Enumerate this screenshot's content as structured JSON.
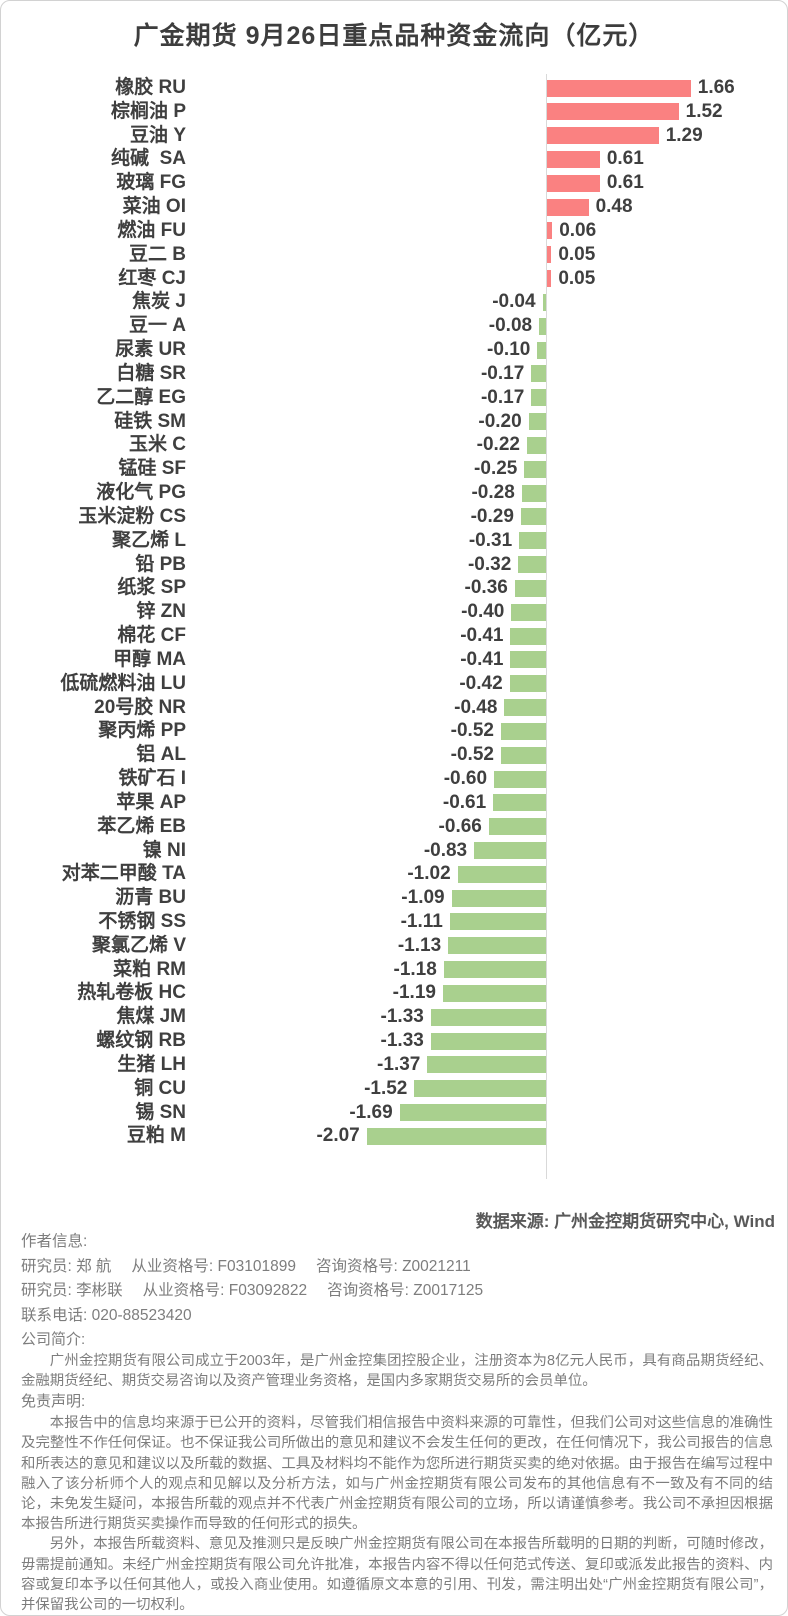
{
  "chart_data": {
    "type": "bar",
    "orientation": "horizontal",
    "title": "广金期货 9月26日重点品种资金流向（亿元）",
    "unit": "亿元",
    "value_decimals": 2,
    "grid": false,
    "legend": "none",
    "positive_color": "#fa8181",
    "negative_color": "#a9d08e",
    "axis_color": "#d9d9d9",
    "categories": [
      "橡胶 RU",
      "棕榈油 P",
      "豆油 Y",
      "纯碱  SA",
      "玻璃 FG",
      "菜油 OI",
      "燃油 FU",
      "豆二 B",
      "红枣 CJ",
      "焦炭 J",
      "豆一 A",
      "尿素 UR",
      "白糖 SR",
      "乙二醇 EG",
      "硅铁 SM",
      "玉米 C",
      "锰硅 SF",
      "液化气 PG",
      "玉米淀粉 CS",
      "聚乙烯 L",
      "铅 PB",
      "纸浆 SP",
      "锌 ZN",
      "棉花 CF",
      "甲醇 MA",
      "低硫燃料油 LU",
      "20号胶 NR",
      "聚丙烯 PP",
      "铝 AL",
      "铁矿石 I",
      "苹果 AP",
      "苯乙烯 EB",
      "镍 NI",
      "对苯二甲酸 TA",
      "沥青 BU",
      "不锈钢 SS",
      "聚氯乙烯 V",
      "菜粕 RM",
      "热轧卷板 HC",
      "焦煤 JM",
      "螺纹钢 RB",
      "生猪 LH",
      "铜 CU",
      "锡 SN",
      "豆粕 M"
    ],
    "values": [
      1.66,
      1.52,
      1.29,
      0.61,
      0.61,
      0.48,
      0.06,
      0.05,
      0.05,
      -0.04,
      -0.08,
      -0.1,
      -0.17,
      -0.17,
      -0.2,
      -0.22,
      -0.25,
      -0.28,
      -0.29,
      -0.31,
      -0.32,
      -0.36,
      -0.4,
      -0.41,
      -0.41,
      -0.42,
      -0.48,
      -0.52,
      -0.52,
      -0.6,
      -0.61,
      -0.66,
      -0.83,
      -1.02,
      -1.09,
      -1.11,
      -1.13,
      -1.18,
      -1.19,
      -1.33,
      -1.33,
      -1.37,
      -1.52,
      -1.69,
      -2.07
    ]
  },
  "source_note": "数据来源: 广州金控期货研究中心, Wind",
  "footer": {
    "author_header": "作者信息:",
    "researchers": [
      {
        "role": "研究员: 郑 航",
        "practice_no": "从业资格号: F03101899",
        "advisory_no": "咨询资格号: Z0021211"
      },
      {
        "role": "研究员: 李彬联",
        "practice_no": "从业资格号: F03092822",
        "advisory_no": "咨询资格号: Z0017125"
      }
    ],
    "contact": "联系电话: 020-88523420",
    "company_header": "公司简介:",
    "company_intro": "广州金控期货有限公司成立于2003年，是广州金控集团控股企业，注册资本为8亿元人民币，具有商品期货经纪、金融期货经纪、期货交易咨询以及资产管理业务资格，是国内多家期货交易所的会员单位。",
    "disclaimer_header": "免责声明:",
    "disclaimer_p1": "本报告中的信息均来源于已公开的资料，尽管我们相信报告中资料来源的可靠性，但我们公司对这些信息的准确性及完整性不作任何保证。也不保证我公司所做出的意见和建议不会发生任何的更改，在任何情况下，我公司报告的信息和所表达的意见和建议以及所载的数据、工具及材料均不能作为您所进行期货买卖的绝对依据。由于报告在编写过程中融入了该分析师个人的观点和见解以及分析方法，如与广州金控期货有限公司发布的其他信息有不一致及有不同的结论，未免发生疑问，本报告所载的观点并不代表广州金控期货有限公司的立场，所以请谨慎参考。我公司不承担因根据本报告所进行期货买卖操作而导致的任何形式的损失。",
    "disclaimer_p2": "另外，本报告所载资料、意见及推测只是反映广州金控期货有限公司在本报告所载明的日期的判断，可随时修改，毋需提前通知。未经广州金控期货有限公司允许批准，本报告内容不得以任何范式传送、复印或派发此报告的资料、内容或复印本予以任何其他人，或投入商业使用。如遵循原文本意的引用、刊发，需注明出处“广州金控期货有限公司”，并保留我公司的一切权利。"
  }
}
